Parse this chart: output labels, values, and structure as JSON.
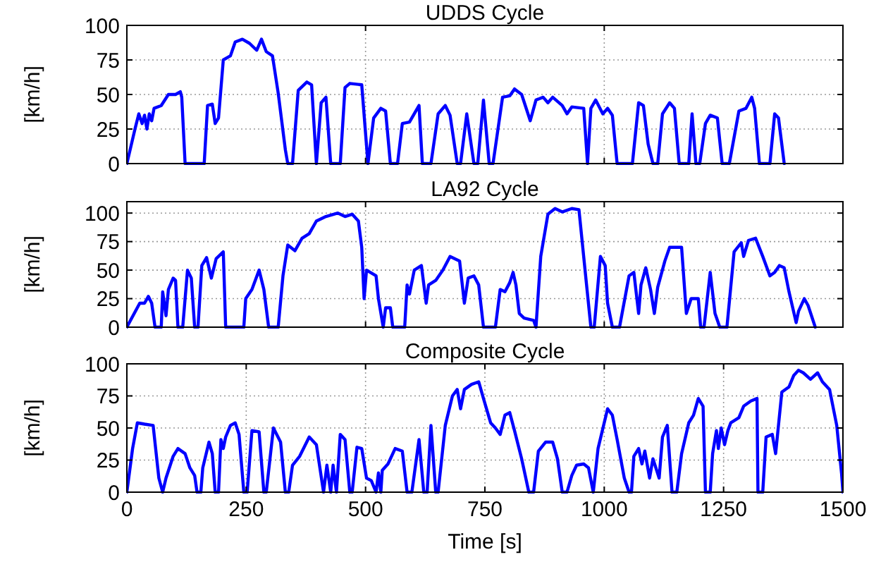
{
  "chart_data": [
    {
      "type": "line",
      "title": "UDDS Cycle",
      "ylabel": "[km/h]",
      "xlim": [
        0,
        1500
      ],
      "xticks": [
        0,
        500,
        1000,
        1500
      ],
      "ylim": [
        0,
        100
      ],
      "yticks": [
        0,
        25,
        50,
        75,
        100
      ],
      "grid": true,
      "tick_labels": "y",
      "line_style": "solid",
      "series": [
        {
          "color": "#0000ff",
          "x": [
            0,
            17,
            25,
            32,
            37,
            42,
            47,
            52,
            57,
            72,
            87,
            102,
            112,
            115,
            122,
            162,
            169,
            179,
            185,
            192,
            202,
            217,
            227,
            242,
            257,
            272,
            282,
            292,
            305,
            317,
            332,
            337,
            347,
            359,
            377,
            387,
            397,
            407,
            417,
            427,
            447,
            457,
            467,
            492,
            505,
            517,
            532,
            542,
            552,
            567,
            577,
            592,
            602,
            612,
            619,
            637,
            652,
            667,
            677,
            692,
            699,
            712,
            727,
            735,
            747,
            759,
            767,
            787,
            802,
            812,
            827,
            845,
            857,
            872,
            882,
            892,
            912,
            922,
            932,
            957,
            965,
            972,
            982,
            997,
            1007,
            1017,
            1027,
            1059,
            1072,
            1082,
            1092,
            1102,
            1112,
            1122,
            1137,
            1147,
            1157,
            1177,
            1184,
            1192,
            1200,
            1212,
            1222,
            1237,
            1247,
            1262,
            1282,
            1297,
            1309,
            1315,
            1325,
            1347,
            1357,
            1365,
            1377
          ],
          "values": [
            0,
            25,
            36,
            29,
            35,
            25,
            36,
            31,
            40,
            42,
            50,
            50,
            52,
            48,
            0,
            0,
            42,
            43,
            29,
            33,
            75,
            78,
            88,
            90,
            87,
            82,
            90,
            81,
            78,
            51,
            10,
            0,
            0,
            53,
            59,
            57,
            0,
            44,
            48,
            0,
            0,
            55,
            58,
            57,
            0,
            33,
            40,
            38,
            0,
            0,
            29,
            30,
            36,
            42,
            0,
            0,
            36,
            42,
            35,
            0,
            0,
            36,
            0,
            0,
            46,
            0,
            0,
            48,
            49,
            54,
            50,
            31,
            46,
            48,
            44,
            48,
            42,
            36,
            41,
            40,
            0,
            40,
            46,
            36,
            40,
            35,
            0,
            0,
            44,
            42,
            14,
            0,
            0,
            36,
            44,
            40,
            0,
            0,
            36,
            0,
            0,
            29,
            35,
            33,
            0,
            0,
            38,
            40,
            48,
            40,
            0,
            0,
            36,
            33,
            0
          ]
        }
      ]
    },
    {
      "type": "line",
      "title": "LA92 Cycle",
      "ylabel": "[km/h]",
      "xlim": [
        0,
        1500
      ],
      "xticks": [
        0,
        500,
        1000,
        1500
      ],
      "ylim": [
        0,
        110
      ],
      "yticks": [
        0,
        25,
        50,
        75,
        100
      ],
      "grid": true,
      "tick_labels": "y",
      "line_style": "solid",
      "series": [
        {
          "color": "#0000ff",
          "x": [
            0,
            27,
            37,
            45,
            52,
            59,
            72,
            75,
            82,
            87,
            97,
            102,
            107,
            117,
            127,
            135,
            142,
            149,
            157,
            167,
            177,
            187,
            202,
            207,
            219,
            245,
            249,
            262,
            277,
            287,
            297,
            317,
            327,
            337,
            352,
            367,
            382,
            397,
            417,
            442,
            457,
            472,
            485,
            492,
            497,
            502,
            522,
            527,
            537,
            542,
            552,
            557,
            582,
            587,
            592,
            602,
            617,
            627,
            632,
            647,
            662,
            677,
            697,
            707,
            715,
            727,
            737,
            747,
            772,
            782,
            792,
            802,
            809,
            815,
            822,
            832,
            852,
            857,
            867,
            882,
            897,
            912,
            932,
            947,
            962,
            972,
            979,
            992,
            1002,
            1007,
            1017,
            1032,
            1052,
            1062,
            1072,
            1077,
            1087,
            1097,
            1105,
            1112,
            1127,
            1137,
            1162,
            1172,
            1182,
            1197,
            1202,
            1209,
            1222,
            1232,
            1242,
            1257,
            1272,
            1287,
            1292,
            1302,
            1317,
            1332,
            1347,
            1357,
            1367,
            1377,
            1387,
            1402,
            1407,
            1419,
            1427,
            1442
          ],
          "values": [
            0,
            21,
            21,
            27,
            21,
            0,
            0,
            31,
            10,
            33,
            43,
            41,
            0,
            0,
            50,
            43,
            0,
            0,
            54,
            61,
            43,
            60,
            66,
            0,
            0,
            0,
            25,
            33,
            50,
            33,
            0,
            0,
            45,
            72,
            67,
            78,
            82,
            93,
            97,
            100,
            97,
            99,
            93,
            70,
            25,
            50,
            45,
            25,
            0,
            17,
            17,
            0,
            0,
            37,
            29,
            50,
            54,
            21,
            37,
            41,
            50,
            62,
            58,
            21,
            43,
            45,
            37,
            0,
            0,
            33,
            31,
            39,
            48,
            37,
            12,
            8,
            6,
            0,
            62,
            99,
            104,
            101,
            104,
            103,
            41,
            0,
            0,
            62,
            54,
            21,
            0,
            0,
            45,
            48,
            12,
            37,
            52,
            33,
            12,
            35,
            58,
            70,
            70,
            12,
            25,
            25,
            0,
            0,
            48,
            12,
            0,
            0,
            66,
            74,
            62,
            76,
            78,
            62,
            45,
            48,
            54,
            52,
            31,
            4,
            14,
            25,
            19,
            0
          ]
        }
      ]
    },
    {
      "type": "line",
      "title": "Composite  Cycle",
      "xlabel": "Time [s]",
      "ylabel": "[km/h]",
      "xlim": [
        0,
        1500
      ],
      "xticks": [
        0,
        250,
        500,
        750,
        1000,
        1250,
        1500
      ],
      "ylim": [
        0,
        100
      ],
      "yticks": [
        0,
        25,
        50,
        75,
        100
      ],
      "grid": true,
      "line_style": "solid",
      "series": [
        {
          "color": "#0000ff",
          "x": [
            0,
            12,
            22,
            37,
            55,
            67,
            75,
            82,
            97,
            107,
            122,
            132,
            142,
            147,
            155,
            159,
            172,
            179,
            185,
            192,
            197,
            202,
            207,
            217,
            227,
            235,
            245,
            252,
            262,
            277,
            287,
            292,
            307,
            322,
            332,
            339,
            347,
            362,
            382,
            397,
            412,
            419,
            427,
            432,
            439,
            447,
            457,
            467,
            472,
            482,
            492,
            502,
            512,
            522,
            527,
            532,
            535,
            547,
            562,
            577,
            587,
            597,
            612,
            622,
            629,
            637,
            647,
            652,
            667,
            682,
            692,
            699,
            707,
            722,
            737,
            747,
            762,
            772,
            782,
            792,
            802,
            812,
            827,
            842,
            852,
            862,
            877,
            892,
            902,
            912,
            922,
            932,
            942,
            957,
            967,
            977,
            987,
            1007,
            1017,
            1027,
            1042,
            1052,
            1057,
            1062,
            1072,
            1079,
            1085,
            1095,
            1102,
            1115,
            1122,
            1132,
            1142,
            1152,
            1162,
            1177,
            1187,
            1197,
            1207,
            1212,
            1222,
            1227,
            1235,
            1239,
            1245,
            1252,
            1259,
            1265,
            1282,
            1292,
            1307,
            1320,
            1322,
            1332,
            1339,
            1352,
            1359,
            1372,
            1387,
            1397,
            1407,
            1417,
            1432,
            1447,
            1457,
            1472,
            1487,
            1497,
            1500
          ],
          "values": [
            0,
            34,
            54,
            53,
            52,
            11,
            0,
            11,
            28,
            34,
            30,
            19,
            13,
            0,
            0,
            19,
            39,
            30,
            0,
            0,
            41,
            34,
            43,
            52,
            54,
            45,
            0,
            0,
            48,
            47,
            0,
            0,
            50,
            39,
            0,
            0,
            21,
            28,
            43,
            37,
            0,
            21,
            0,
            21,
            0,
            45,
            41,
            0,
            0,
            35,
            34,
            11,
            9,
            0,
            15,
            0,
            17,
            22,
            34,
            32,
            0,
            0,
            41,
            0,
            0,
            52,
            0,
            0,
            52,
            75,
            80,
            65,
            80,
            84,
            86,
            73,
            54,
            50,
            45,
            60,
            62,
            48,
            26,
            0,
            0,
            32,
            39,
            39,
            26,
            0,
            0,
            13,
            21,
            22,
            19,
            0,
            34,
            65,
            60,
            41,
            11,
            0,
            0,
            28,
            34,
            22,
            32,
            11,
            26,
            11,
            43,
            52,
            0,
            0,
            30,
            54,
            60,
            73,
            67,
            0,
            0,
            30,
            48,
            34,
            50,
            37,
            48,
            54,
            58,
            67,
            71,
            73,
            0,
            0,
            43,
            45,
            30,
            78,
            82,
            91,
            95,
            93,
            88,
            93,
            86,
            80,
            52,
            15,
            0
          ]
        }
      ]
    }
  ]
}
